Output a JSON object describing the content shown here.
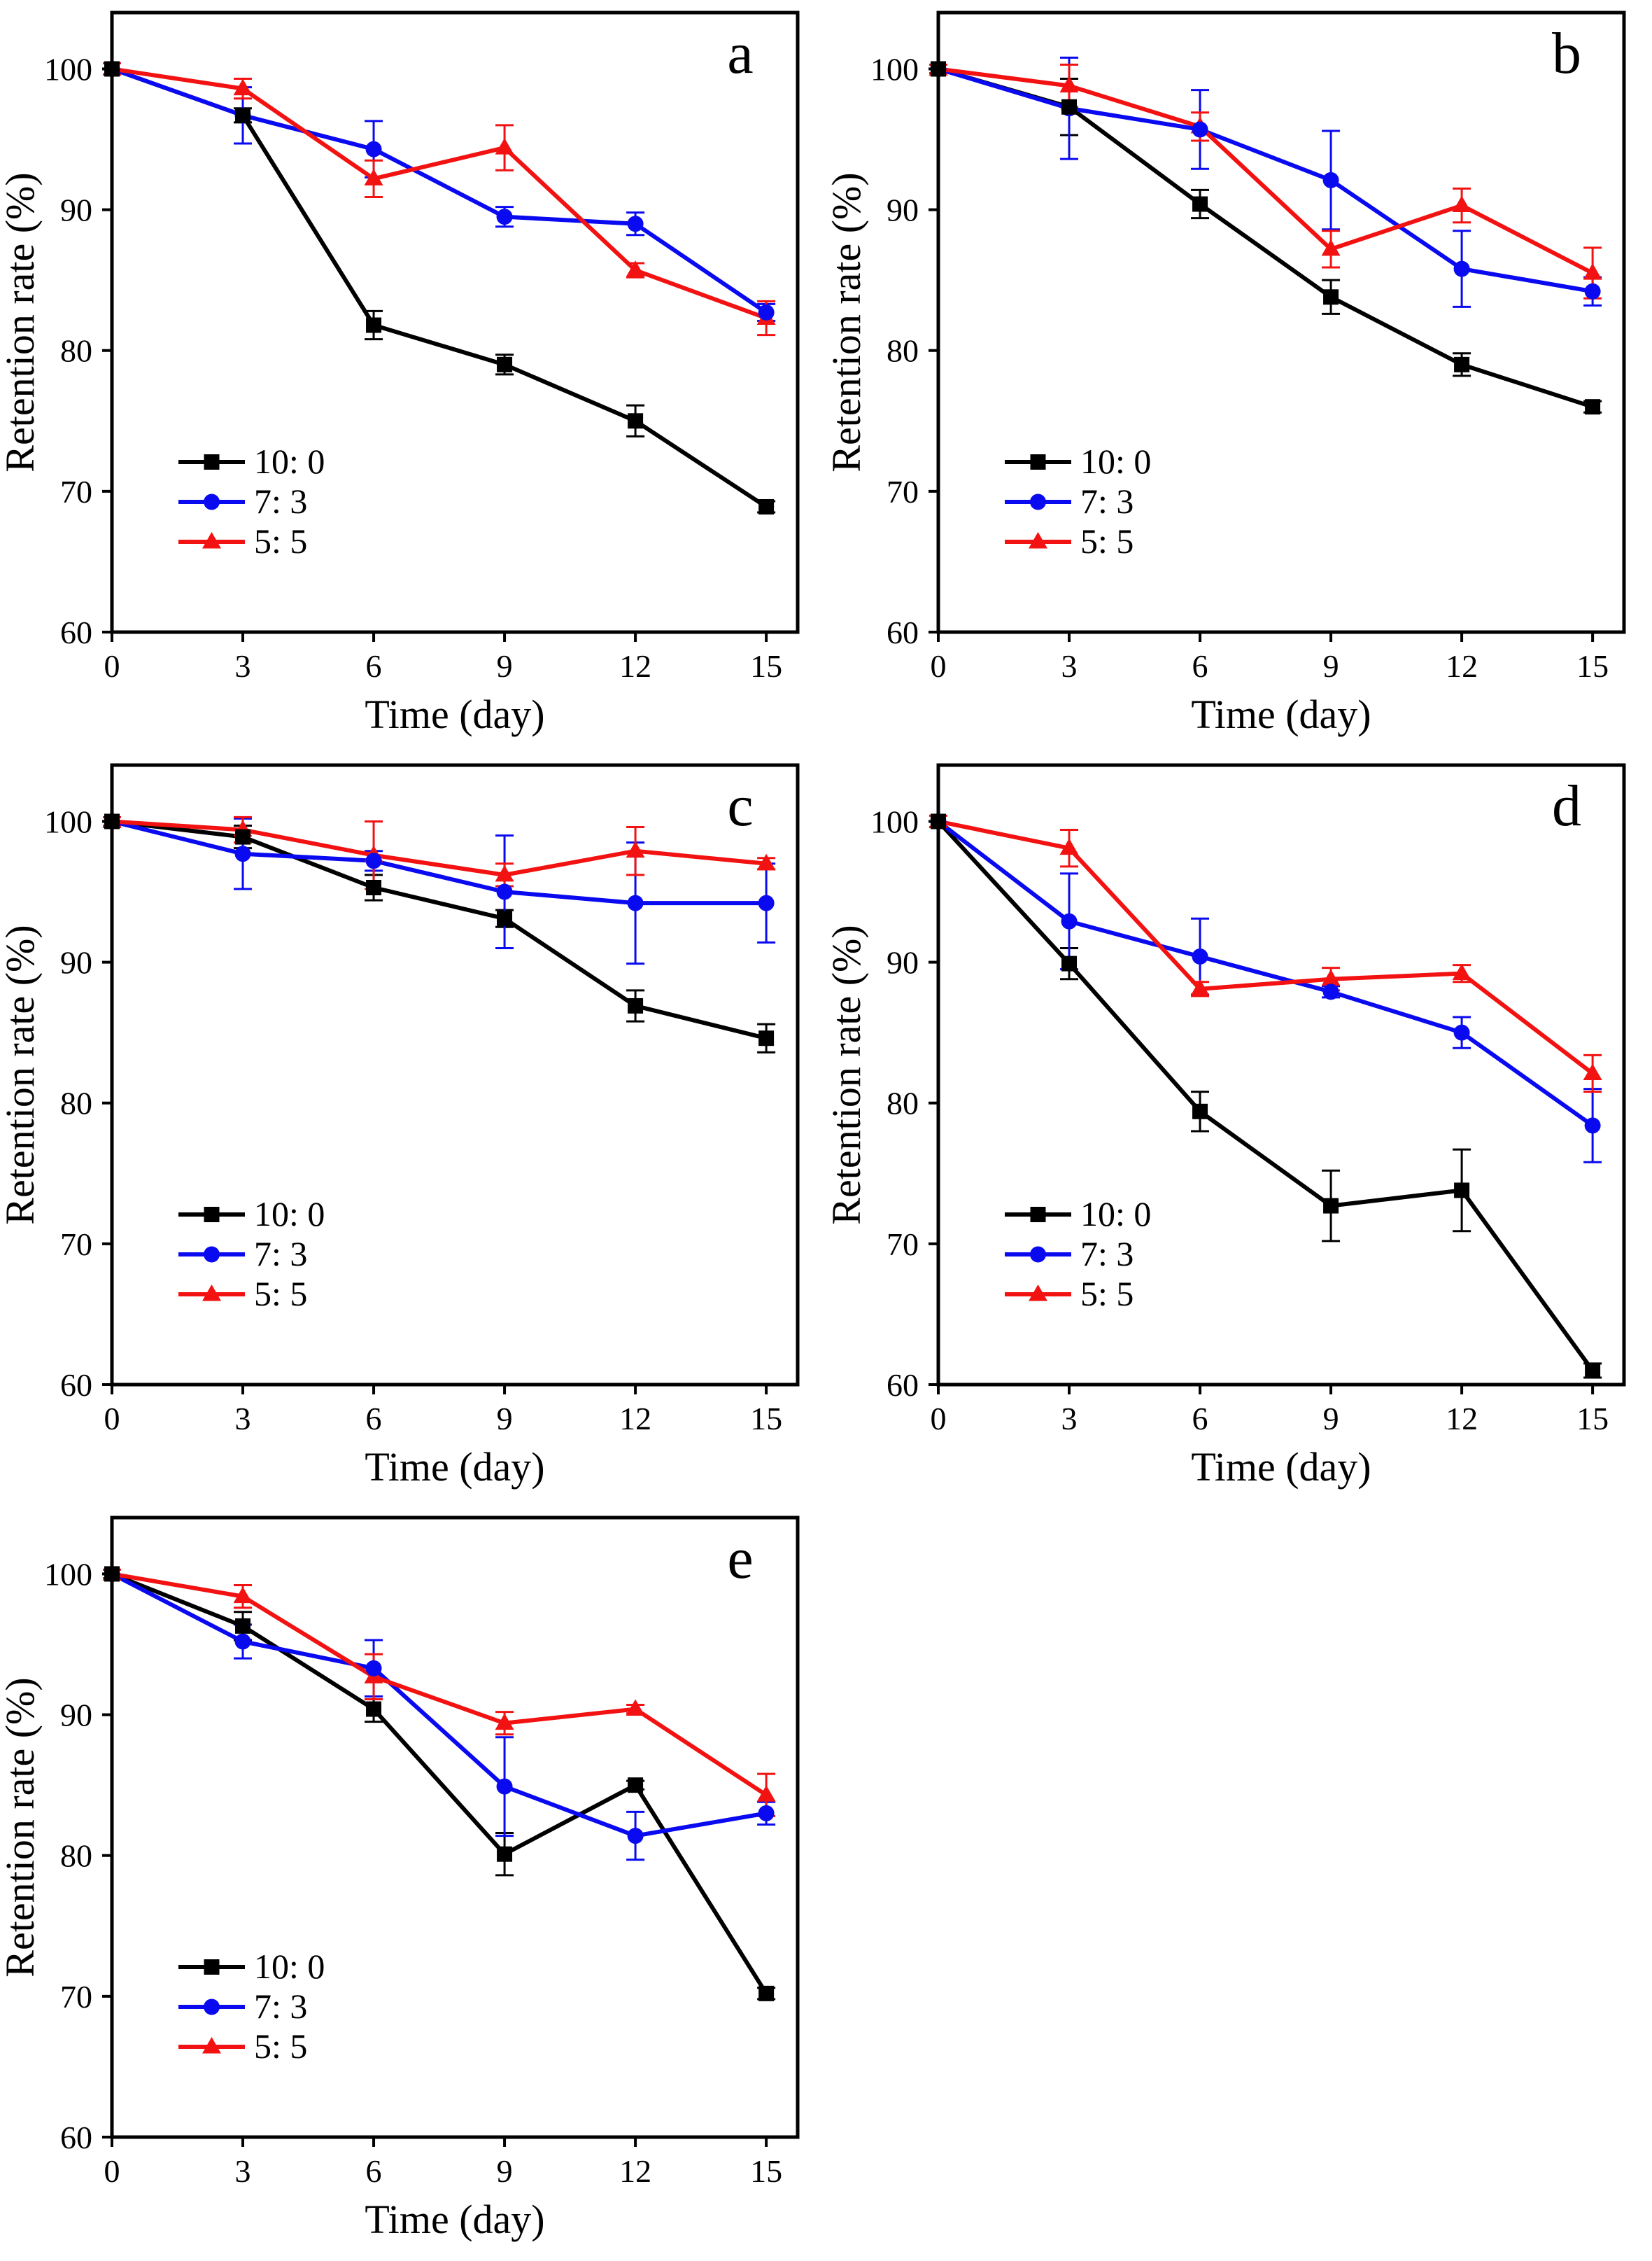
{
  "page": {
    "background": "#ffffff"
  },
  "colors": {
    "black": "#000000",
    "blue": "#0a0af0",
    "red": "#f21212",
    "axis": "#000000",
    "text": "#000000"
  },
  "axes": {
    "xlabel": "Time (day)",
    "ylabel": "Retention rate (%)",
    "xticks": [
      0,
      3,
      6,
      9,
      12,
      15
    ],
    "yticks": [
      60,
      70,
      80,
      90,
      100
    ],
    "xlim": [
      0,
      15.72
    ],
    "ylim": [
      60,
      104
    ],
    "grid": false,
    "legend_position": "lower-left-inside"
  },
  "legend": {
    "items": [
      {
        "label": "10: 0",
        "marker": "square",
        "color": "black"
      },
      {
        "label": "7: 3",
        "marker": "circle",
        "color": "blue"
      },
      {
        "label": "5: 5",
        "marker": "triangle",
        "color": "red"
      }
    ]
  },
  "chart_data": [
    {
      "type": "line",
      "panel_label": "a",
      "x": [
        0,
        3,
        6,
        9,
        12,
        15
      ],
      "series": [
        {
          "name": "10: 0",
          "key": "10-0",
          "color": "black",
          "marker": "square",
          "values": [
            100,
            96.7,
            81.8,
            79.0,
            75.0,
            68.9
          ],
          "errors": [
            0,
            0.5,
            1.0,
            0.7,
            1.1,
            0.4
          ]
        },
        {
          "name": "7: 3",
          "key": "7-3",
          "color": "blue",
          "marker": "circle",
          "values": [
            100,
            96.7,
            94.3,
            89.5,
            89.0,
            82.7
          ],
          "errors": [
            0,
            2.0,
            2.0,
            0.7,
            0.8,
            0.6
          ]
        },
        {
          "name": "5: 5",
          "key": "5-5",
          "color": "red",
          "marker": "triangle",
          "values": [
            100,
            98.6,
            92.2,
            94.4,
            85.7,
            82.3
          ],
          "errors": [
            0.4,
            0.7,
            1.3,
            1.6,
            0.5,
            1.2
          ]
        }
      ]
    },
    {
      "type": "line",
      "panel_label": "b",
      "x": [
        0,
        3,
        6,
        9,
        12,
        15
      ],
      "series": [
        {
          "name": "10: 0",
          "key": "10-0",
          "color": "black",
          "marker": "square",
          "values": [
            100,
            97.3,
            90.4,
            83.8,
            79.0,
            76.0
          ],
          "errors": [
            0,
            2.0,
            1.0,
            1.2,
            0.8,
            0.4
          ]
        },
        {
          "name": "7: 3",
          "key": "7-3",
          "color": "blue",
          "marker": "circle",
          "values": [
            100,
            97.2,
            95.7,
            92.1,
            85.8,
            84.2
          ],
          "errors": [
            0,
            3.6,
            2.8,
            3.5,
            2.7,
            1.0
          ]
        },
        {
          "name": "5: 5",
          "key": "5-5",
          "color": "red",
          "marker": "triangle",
          "values": [
            100,
            98.8,
            95.9,
            87.2,
            90.3,
            85.5
          ],
          "errors": [
            0.3,
            1.5,
            1.0,
            1.3,
            1.2,
            1.8
          ]
        }
      ]
    },
    {
      "type": "line",
      "panel_label": "c",
      "x": [
        0,
        3,
        6,
        9,
        12,
        15
      ],
      "series": [
        {
          "name": "10: 0",
          "key": "10-0",
          "color": "black",
          "marker": "square",
          "values": [
            100,
            98.9,
            95.3,
            93.1,
            86.9,
            84.6
          ],
          "errors": [
            0,
            0.8,
            0.9,
            0.6,
            1.1,
            1.0
          ]
        },
        {
          "name": "7: 3",
          "key": "7-3",
          "color": "blue",
          "marker": "circle",
          "values": [
            100,
            97.7,
            97.2,
            95.0,
            94.2,
            94.2
          ],
          "errors": [
            0,
            2.5,
            0.7,
            4.0,
            4.3,
            2.8
          ]
        },
        {
          "name": "5: 5",
          "key": "5-5",
          "color": "red",
          "marker": "triangle",
          "values": [
            100,
            99.4,
            97.6,
            96.2,
            97.9,
            97.0
          ],
          "errors": [
            0.3,
            0.9,
            2.4,
            0.8,
            1.7,
            0.4
          ]
        }
      ]
    },
    {
      "type": "line",
      "panel_label": "d",
      "x": [
        0,
        3,
        6,
        9,
        12,
        15
      ],
      "series": [
        {
          "name": "10: 0",
          "key": "10-0",
          "color": "black",
          "marker": "square",
          "values": [
            100,
            89.9,
            79.4,
            72.7,
            73.8,
            61.0
          ],
          "errors": [
            0,
            1.1,
            1.4,
            2.5,
            2.9,
            0.5
          ]
        },
        {
          "name": "7: 3",
          "key": "7-3",
          "color": "blue",
          "marker": "circle",
          "values": [
            100,
            92.9,
            90.4,
            87.9,
            85.0,
            78.4
          ],
          "errors": [
            0,
            3.4,
            2.7,
            0.4,
            1.1,
            2.6
          ]
        },
        {
          "name": "5: 5",
          "key": "5-5",
          "color": "red",
          "marker": "triangle",
          "values": [
            100,
            98.1,
            88.1,
            88.8,
            89.2,
            82.1
          ],
          "errors": [
            0.4,
            1.3,
            0.5,
            0.8,
            0.6,
            1.3
          ]
        }
      ]
    },
    {
      "type": "line",
      "panel_label": "e",
      "x": [
        0,
        3,
        6,
        9,
        12,
        15
      ],
      "series": [
        {
          "name": "10: 0",
          "key": "10-0",
          "color": "black",
          "marker": "square",
          "values": [
            100,
            96.3,
            90.4,
            80.1,
            85.0,
            70.2
          ],
          "errors": [
            0,
            1.0,
            0.9,
            1.5,
            0.3,
            0.4
          ]
        },
        {
          "name": "7: 3",
          "key": "7-3",
          "color": "blue",
          "marker": "circle",
          "values": [
            100,
            95.2,
            93.3,
            84.9,
            81.4,
            83.0
          ],
          "errors": [
            0,
            1.2,
            2.0,
            3.5,
            1.7,
            0.8
          ]
        },
        {
          "name": "5: 5",
          "key": "5-5",
          "color": "red",
          "marker": "triangle",
          "values": [
            100,
            98.4,
            92.7,
            89.4,
            90.4,
            84.3
          ],
          "errors": [
            0.3,
            0.8,
            1.6,
            0.8,
            0.3,
            1.5
          ]
        }
      ]
    }
  ]
}
